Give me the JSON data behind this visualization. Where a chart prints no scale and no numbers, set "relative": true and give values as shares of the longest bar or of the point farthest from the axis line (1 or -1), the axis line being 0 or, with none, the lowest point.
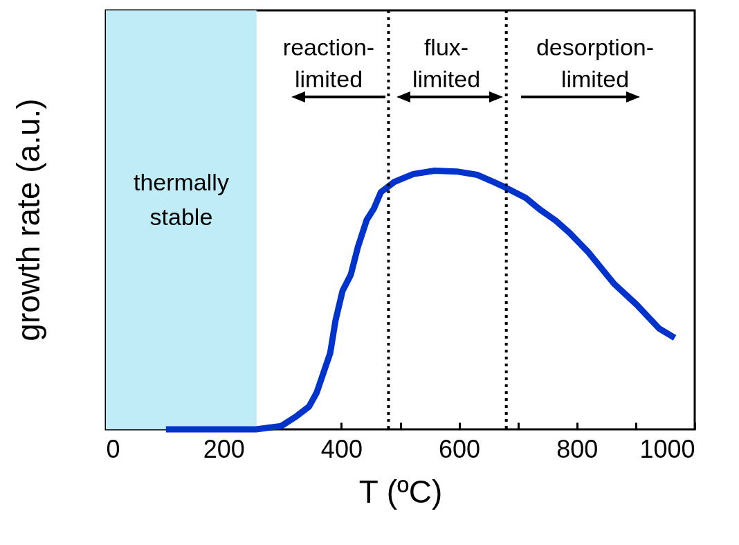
{
  "chart_data": {
    "type": "line",
    "xlabel": "T (ºC)",
    "ylabel": "growth rate (a.u.)",
    "relative": true,
    "tick_labels": "x",
    "grid": false,
    "marker": "none",
    "line_style": "solid",
    "xlim": [
      0,
      1000
    ],
    "xticks": [
      0,
      {
        "value": 100,
        "label": null
      },
      200,
      {
        "value": 300,
        "label": null
      },
      400,
      {
        "value": 500,
        "label": null
      },
      600,
      {
        "value": 700,
        "label": null
      },
      800,
      {
        "value": 900,
        "label": null
      },
      1000
    ],
    "series": [
      {
        "color": "#0033cc",
        "x": [
          102,
          255,
          298,
          322,
          345,
          358,
          381,
          390,
          402,
          416,
          428,
          443,
          455,
          467,
          490,
          522,
          558,
          596,
          631,
          658,
          678,
          713,
          737,
          764,
          787,
          819,
          863,
          901,
          940,
          966
        ],
        "values": [
          0,
          0,
          0.013,
          0.048,
          0.088,
          0.142,
          0.295,
          0.421,
          0.536,
          0.598,
          0.705,
          0.81,
          0.853,
          0.917,
          0.957,
          0.987,
          1,
          0.997,
          0.984,
          0.957,
          0.936,
          0.895,
          0.85,
          0.807,
          0.761,
          0.686,
          0.563,
          0.483,
          0.389,
          0.354
        ]
      }
    ],
    "bands": [
      {
        "axis": "x",
        "from": 0,
        "to": 256,
        "label": "thermally stable",
        "color": "#c0ecf8"
      }
    ],
    "ref_lines": [
      {
        "axis": "x",
        "value": 480,
        "line_style": "dotted"
      },
      {
        "axis": "x",
        "value": 680,
        "line_style": "dotted"
      }
    ],
    "annotations": [
      "reaction-limited",
      "flux-limited",
      "desorption-limited"
    ]
  }
}
